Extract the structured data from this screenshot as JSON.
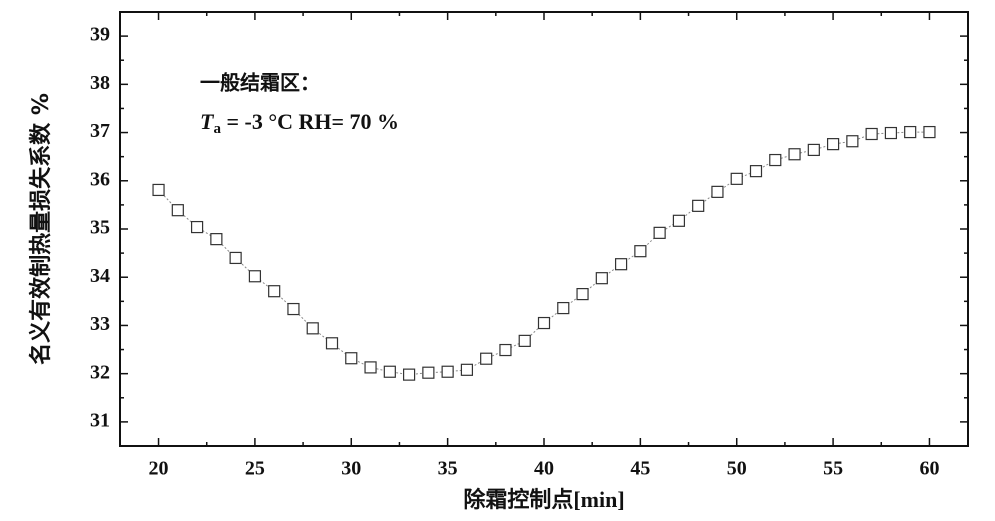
{
  "chart_data": {
    "type": "line",
    "y_label": "名义有效制热量损失系数 %",
    "x_label": "除霜控制点[min]",
    "annotation": {
      "line1": "一般结霜区：",
      "line2_symbol": "T",
      "line2_sub": "a",
      "line2_rest": " = -3 °C   RH= 70 %"
    },
    "x": [
      20,
      21,
      22,
      23,
      24,
      25,
      26,
      27,
      28,
      29,
      30,
      31,
      32,
      33,
      34,
      35,
      36,
      37,
      38,
      39,
      40,
      41,
      42,
      43,
      44,
      45,
      46,
      47,
      48,
      49,
      50,
      51,
      52,
      53,
      54,
      55,
      56,
      57,
      58,
      59,
      60
    ],
    "series": [
      {
        "name": "名义有效制热量损失系数",
        "color": "#333333",
        "values": [
          35.81,
          35.39,
          35.04,
          34.79,
          34.4,
          34.02,
          33.71,
          33.34,
          32.94,
          32.63,
          32.32,
          32.13,
          32.04,
          31.98,
          32.02,
          32.04,
          32.08,
          32.31,
          32.49,
          32.68,
          33.05,
          33.36,
          33.65,
          33.98,
          34.27,
          34.54,
          34.92,
          35.17,
          35.48,
          35.77,
          36.04,
          36.2,
          36.43,
          36.55,
          36.64,
          36.76,
          36.82,
          36.97,
          36.99,
          37.01,
          37.01
        ]
      }
    ],
    "xlim": [
      18,
      62
    ],
    "ylim": [
      30.5,
      39.5
    ],
    "xticks": [
      20,
      25,
      30,
      35,
      40,
      45,
      50,
      55,
      60
    ],
    "yticks": [
      31,
      32,
      33,
      34,
      35,
      36,
      37,
      38,
      39
    ]
  }
}
